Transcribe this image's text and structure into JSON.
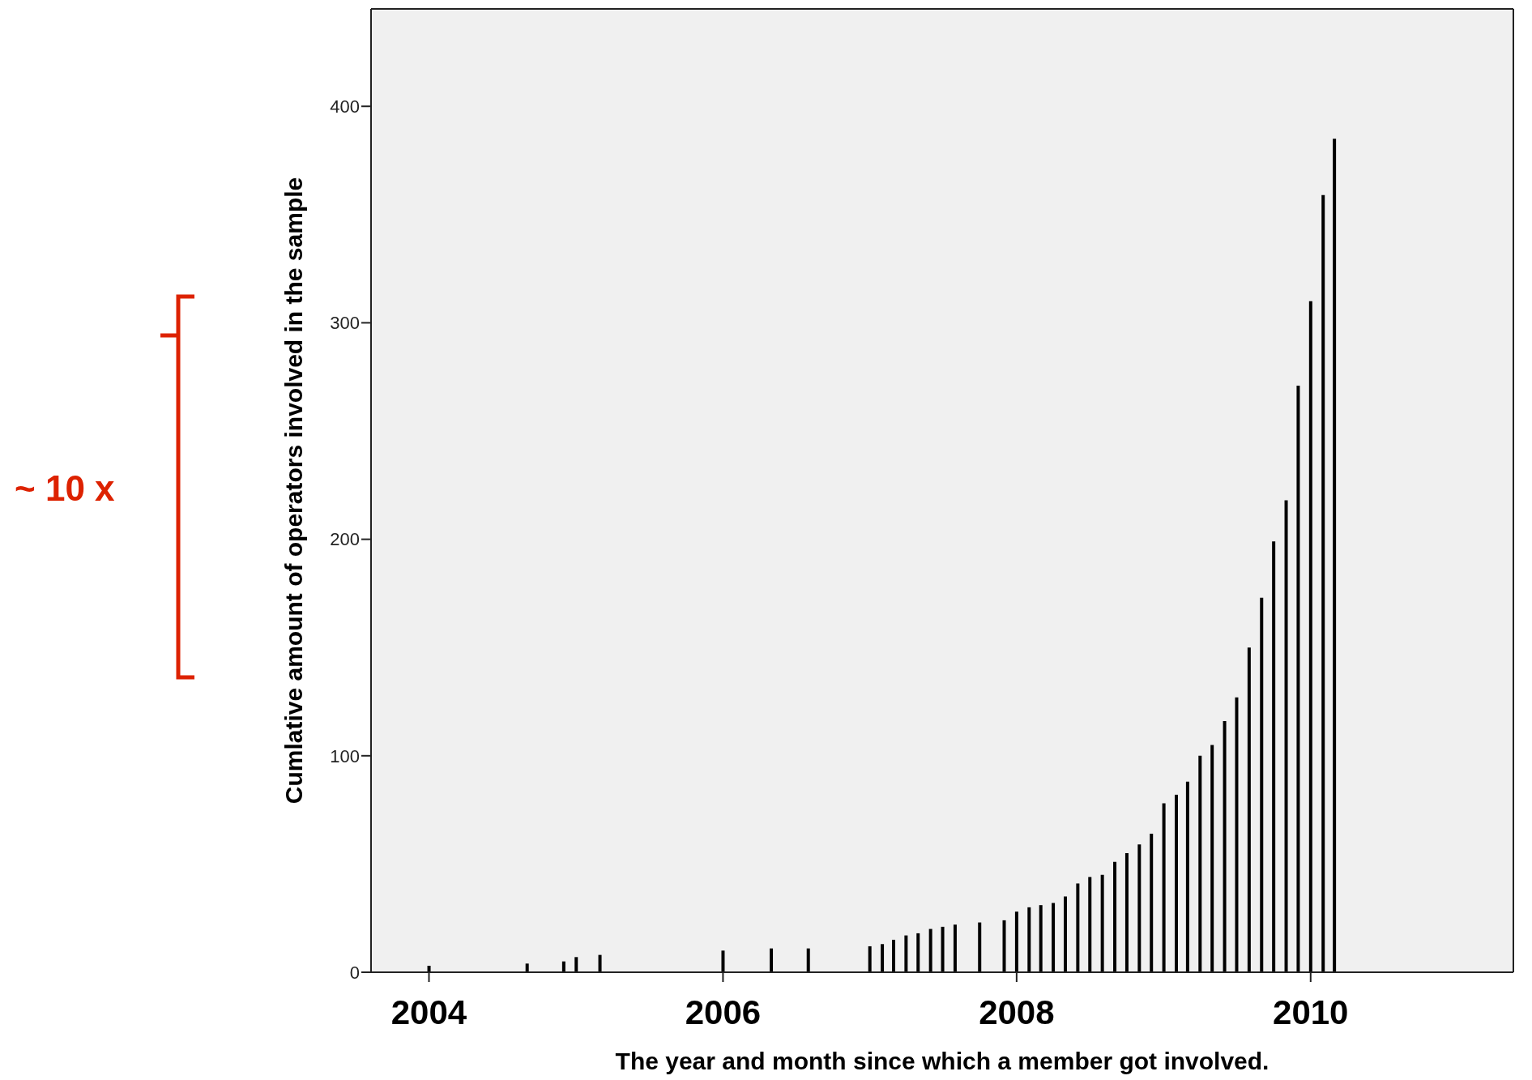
{
  "chart_data": {
    "type": "bar",
    "xlabel": "The year and month since which a member got involved.",
    "ylabel": "Cumlative amount of operators involved in the sample",
    "x": [
      "2004-01",
      "2004-09",
      "2004-12",
      "2005-01",
      "2005-03",
      "2006-01",
      "2006-05",
      "2006-08",
      "2007-01",
      "2007-02",
      "2007-03",
      "2007-04",
      "2007-05",
      "2007-06",
      "2007-07",
      "2007-08",
      "2007-10",
      "2007-12",
      "2008-01",
      "2008-02",
      "2008-03",
      "2008-04",
      "2008-05",
      "2008-06",
      "2008-07",
      "2008-08",
      "2008-09",
      "2008-10",
      "2008-11",
      "2008-12",
      "2009-01",
      "2009-02",
      "2009-03",
      "2009-04",
      "2009-05",
      "2009-06",
      "2009-07",
      "2009-08",
      "2009-09",
      "2009-10",
      "2009-11",
      "2009-12",
      "2010-01",
      "2010-02",
      "2010-03"
    ],
    "values": [
      3,
      4,
      5,
      7,
      8,
      10,
      11,
      11,
      12,
      13,
      15,
      17,
      18,
      20,
      21,
      22,
      23,
      24,
      28,
      30,
      31,
      32,
      35,
      41,
      44,
      45,
      51,
      55,
      59,
      64,
      78,
      82,
      88,
      100,
      105,
      116,
      127,
      150,
      173,
      199,
      218,
      271,
      310,
      359,
      385
    ],
    "color": "#000000",
    "xlim": [
      "2003-08-10",
      "2011-05-20"
    ],
    "xticks": [
      {
        "value": "2004-01",
        "label": "2004"
      },
      {
        "value": "2006-01",
        "label": "2006"
      },
      {
        "value": "2008-01",
        "label": "2008"
      },
      {
        "value": "2010-01",
        "label": "2010"
      }
    ],
    "ylim": [
      0,
      445
    ],
    "yticks": [
      0,
      100,
      200,
      300,
      400
    ],
    "annotations": [
      "~ 10 x"
    ]
  }
}
